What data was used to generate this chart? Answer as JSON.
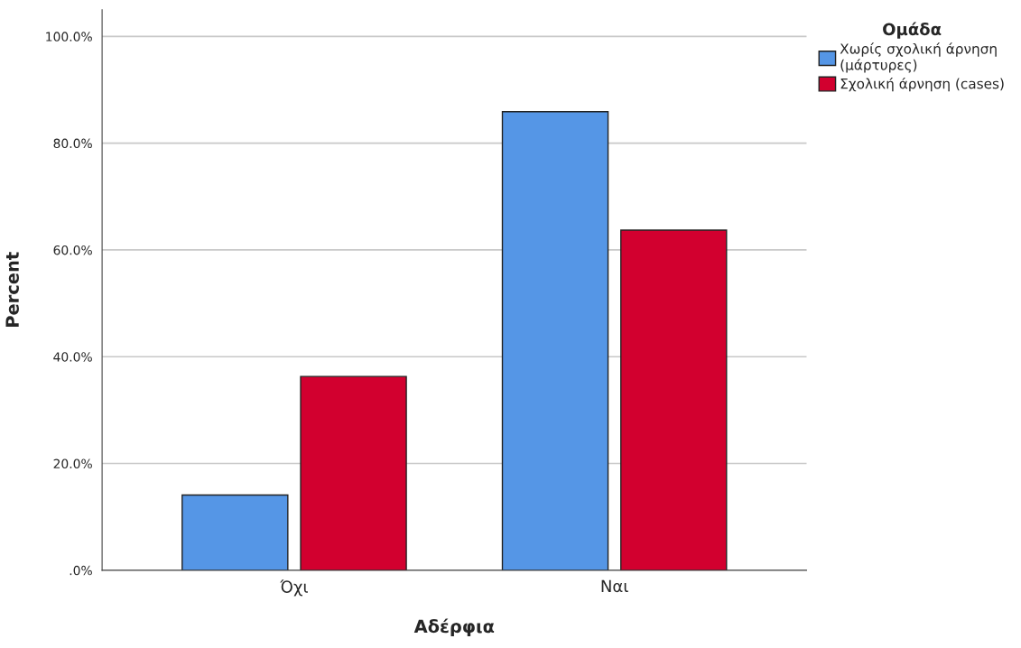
{
  "chart_data": {
    "type": "bar",
    "xlabel": "Αδέρφια",
    "ylabel": "Percent",
    "legend_title": "Ομάδα",
    "categories": [
      "Όχι",
      "Ναι"
    ],
    "series": [
      {
        "name": "Χωρίς σχολική άρνηση\n(μάρτυρες)",
        "color": "#5596e6",
        "values": [
          14.1,
          85.9
        ]
      },
      {
        "name": "Σχολική άρνηση (cases)",
        "color": "#d2002f",
        "values": [
          36.3,
          63.7
        ]
      }
    ],
    "ylim": [
      0,
      105
    ],
    "yticks": [
      {
        "value": 0,
        "label": ".0%"
      },
      {
        "value": 20,
        "label": "20.0%"
      },
      {
        "value": 40,
        "label": "40.0%"
      },
      {
        "value": 60,
        "label": "60.0%"
      },
      {
        "value": 80,
        "label": "80.0%"
      },
      {
        "value": 100,
        "label": "100.0%"
      }
    ],
    "grid": "y",
    "legend": "top right"
  }
}
